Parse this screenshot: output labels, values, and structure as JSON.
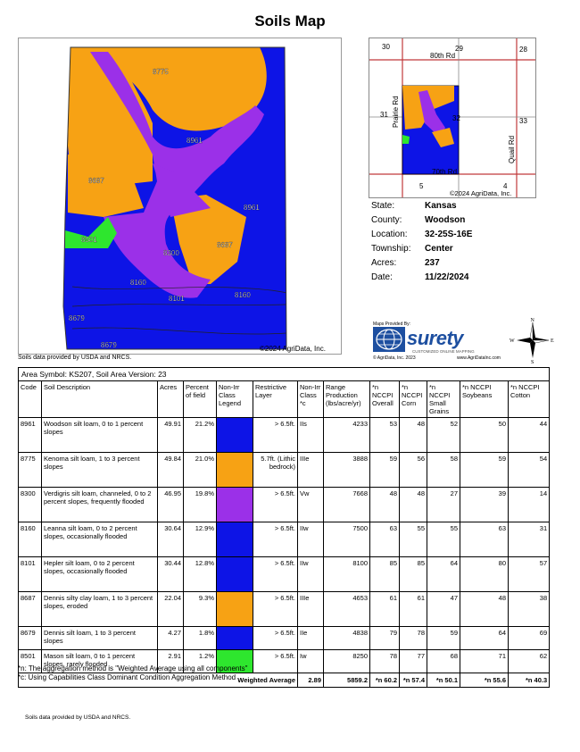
{
  "title": "Soils Map",
  "map": {
    "labels": [
      "8775",
      "8961",
      "8687",
      "8961",
      "8501",
      "8300",
      "8687",
      "8160",
      "8101",
      "8160",
      "8679",
      "8679"
    ],
    "copyright": "©2024 AgriData, Inc.",
    "credit": "Soils data provided by USDA and NRCS."
  },
  "locator": {
    "sections": [
      "30",
      "29",
      "28",
      "31",
      "32",
      "33",
      "5",
      "4"
    ],
    "roads": [
      "80th Rd",
      "Prairie Rd",
      "70th Rd",
      "Quail Rd"
    ],
    "copyright": "©2024 AgriData, Inc."
  },
  "info": [
    {
      "label": "State:",
      "value": "Kansas"
    },
    {
      "label": "County:",
      "value": "Woodson"
    },
    {
      "label": "Location:",
      "value": "32-25S-16E"
    },
    {
      "label": "Township:",
      "value": "Center"
    },
    {
      "label": "Acres:",
      "value": "237"
    },
    {
      "label": "Date:",
      "value": "11/22/2024"
    }
  ],
  "brand": {
    "maps_by": "Maps Provided By:",
    "name": "surety",
    "tagline": "CUSTOMIZED ONLINE MAPPING",
    "copyright": "© AgriData, Inc. 2023",
    "url": "www.AgriDataInc.com",
    "compass": {
      "n": "N",
      "s": "S",
      "e": "E",
      "w": "W"
    }
  },
  "table": {
    "area_symbol": "Area Symbol: KS207, Soil Area Version: 23",
    "headers": [
      "Code",
      "Soil Description",
      "Acres",
      "Percent of field",
      "Non-Irr Class Legend",
      "Restrictive Layer",
      "Non-Irr Class *c",
      "Range Production (lbs/acre/yr)",
      "*n NCCPI Overall",
      "*n NCCPI Corn",
      "*n NCCPI Small Grains",
      "*n NCCPI Soybeans",
      "*n NCCPI Cotton"
    ],
    "rows": [
      {
        "code": "8961",
        "desc": "Woodson silt loam, 0 to 1 percent slopes",
        "acres": "49.91",
        "pct": "21.2%",
        "color": "#0d14e6",
        "restr": "> 6.5ft.",
        "cls": "IIs",
        "range": "4233",
        "overall": "53",
        "corn": "48",
        "grains": "52",
        "soy": "50",
        "cotton": "44"
      },
      {
        "code": "8775",
        "desc": "Kenoma silt loam, 1 to 3 percent slopes",
        "acres": "49.84",
        "pct": "21.0%",
        "color": "#f7a214",
        "restr": "5.7ft. (Lithic bedrock)",
        "cls": "IIIe",
        "range": "3888",
        "overall": "59",
        "corn": "56",
        "grains": "58",
        "soy": "59",
        "cotton": "54"
      },
      {
        "code": "8300",
        "desc": "Verdigris silt loam, channeled, 0 to 2 percent slopes, frequently flooded",
        "acres": "46.95",
        "pct": "19.8%",
        "color": "#9b30e8",
        "restr": "> 6.5ft.",
        "cls": "Vw",
        "range": "7668",
        "overall": "48",
        "corn": "48",
        "grains": "27",
        "soy": "39",
        "cotton": "14"
      },
      {
        "code": "8160",
        "desc": "Leanna silt loam, 0 to 2 percent slopes, occasionally flooded",
        "acres": "30.64",
        "pct": "12.9%",
        "color": "#0d14e6",
        "restr": "> 6.5ft.",
        "cls": "IIw",
        "range": "7500",
        "overall": "63",
        "corn": "55",
        "grains": "55",
        "soy": "63",
        "cotton": "31"
      },
      {
        "code": "8101",
        "desc": "Hepler silt loam, 0 to 2 percent slopes, occasionally flooded",
        "acres": "30.44",
        "pct": "12.8%",
        "color": "#0d14e6",
        "restr": "> 6.5ft.",
        "cls": "IIw",
        "range": "8100",
        "overall": "85",
        "corn": "85",
        "grains": "64",
        "soy": "80",
        "cotton": "57"
      },
      {
        "code": "8687",
        "desc": "Dennis silty clay loam, 1 to 3 percent slopes, eroded",
        "acres": "22.04",
        "pct": "9.3%",
        "color": "#f7a214",
        "restr": "> 6.5ft.",
        "cls": "IIIe",
        "range": "4653",
        "overall": "61",
        "corn": "61",
        "grains": "47",
        "soy": "48",
        "cotton": "38"
      },
      {
        "code": "8679",
        "desc": "Dennis silt loam, 1 to 3 percent slopes",
        "acres": "4.27",
        "pct": "1.8%",
        "color": "#0d14e6",
        "restr": "> 6.5ft.",
        "cls": "IIe",
        "range": "4838",
        "overall": "79",
        "corn": "78",
        "grains": "59",
        "soy": "64",
        "cotton": "69"
      },
      {
        "code": "8501",
        "desc": "Mason silt loam, 0 to 1 percent slopes, rarely flooded",
        "acres": "2.91",
        "pct": "1.2%",
        "color": "#2ee62e",
        "restr": "> 6.5ft.",
        "cls": "Iw",
        "range": "8250",
        "overall": "78",
        "corn": "77",
        "grains": "68",
        "soy": "71",
        "cotton": "62"
      }
    ],
    "weighted": {
      "label": "Weighted Average",
      "cls": "2.89",
      "range": "5859.2",
      "overall": "*n 60.2",
      "corn": "*n 57.4",
      "grains": "*n 50.1",
      "soy": "*n 55.6",
      "cotton": "*n 40.3"
    }
  },
  "notes": [
    "*n: The aggregation method is \"Weighted Average using all components\"",
    "*c: Using Capabilities Class Dominant Condition Aggregation Method"
  ],
  "footer": "Soils data provided by USDA and NRCS."
}
